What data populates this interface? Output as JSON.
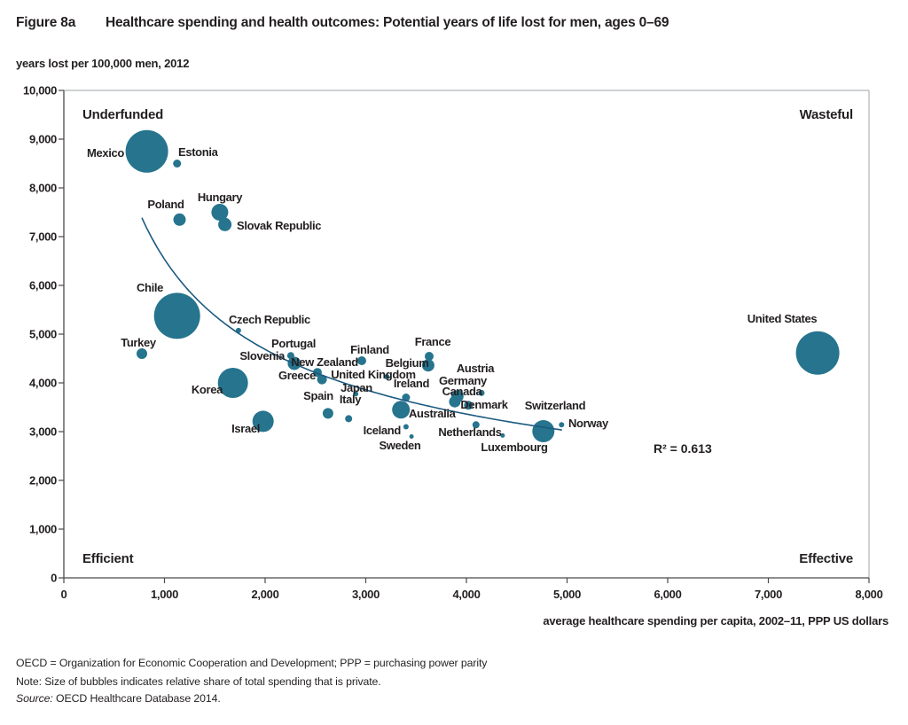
{
  "figure": {
    "tag": "Figure 8a",
    "title": "Healthcare spending and health outcomes: Potential years of life lost for men, ages 0–69"
  },
  "subtitle": "years lost per 100,000 men, 2012",
  "x_axis_title": "average healthcare spending per capita, 2002–11,  PPP US dollars",
  "quadrant_labels": {
    "top_left": "Underfunded",
    "top_right": "Wasteful",
    "bottom_left": "Efficient",
    "bottom_right": "Effective"
  },
  "r2_annotation": "R² = 0.613",
  "footnotes": {
    "line1": "OECD = Organization for Economic Cooperation and Development; PPP = purchasing power parity",
    "line2": "Note: Size of bubbles indicates relative share of total spending that is private.",
    "source_prefix": "Source:",
    "source_text": " OECD Healthcare Database 2014."
  },
  "colors": {
    "bubble": "#26748E",
    "trend_line": "#1B5A80",
    "quadrant_red": "#C4163C",
    "axis": "#4A4A4C",
    "border": "#B1B3B6",
    "text": "#231F20"
  },
  "chart_data": {
    "type": "scatter",
    "title": "Healthcare spending and health outcomes: Potential years of life lost for men, ages 0–69",
    "xlabel": "average healthcare spending per capita, 2002–11, PPP US dollars",
    "ylabel": "years lost per 100,000 men, 2012",
    "x_range": [
      0,
      8000
    ],
    "y_range": [
      0,
      10000
    ],
    "grid": false,
    "legend": false,
    "bubble_size_meaning": "relative share of total spending that is private",
    "x_ticks": [
      {
        "v": 0,
        "label": "0"
      },
      {
        "v": 1000,
        "label": "1,000"
      },
      {
        "v": 2000,
        "label": "2,000"
      },
      {
        "v": 3000,
        "label": "3,000"
      },
      {
        "v": 4000,
        "label": "4,000"
      },
      {
        "v": 5000,
        "label": "5,000"
      },
      {
        "v": 6000,
        "label": "6,000"
      },
      {
        "v": 7000,
        "label": "7,000"
      },
      {
        "v": 8000,
        "label": "8,000"
      }
    ],
    "y_ticks": [
      {
        "v": 0,
        "label": "0"
      },
      {
        "v": 1000,
        "label": "1,000"
      },
      {
        "v": 2000,
        "label": "2,000"
      },
      {
        "v": 3000,
        "label": "3,000"
      },
      {
        "v": 4000,
        "label": "4,000"
      },
      {
        "v": 5000,
        "label": "5,000"
      },
      {
        "v": 6000,
        "label": "6,000"
      },
      {
        "v": 7000,
        "label": "7,000"
      },
      {
        "v": 8000,
        "label": "8,000"
      },
      {
        "v": 9000,
        "label": "9,000"
      },
      {
        "v": 10000,
        "label": "10,000"
      }
    ],
    "trendline": {
      "form": "power",
      "a": 180042,
      "b": -0.48,
      "x_start": 775,
      "x_end": 4950,
      "r_squared": 0.613
    },
    "points": [
      {
        "country": "Mexico",
        "spending": 825,
        "years_lost": 8750,
        "r": 24,
        "label_x": 140,
        "label_y": 177,
        "anchor": "end"
      },
      {
        "country": "Estonia",
        "spending": 1125,
        "years_lost": 8500,
        "r": 4.5,
        "label_x": 201,
        "label_y": 176,
        "anchor": "start"
      },
      {
        "country": "Poland",
        "spending": 1150,
        "years_lost": 7350,
        "r": 7,
        "label_x": 187,
        "label_y": 235,
        "anchor": "middle"
      },
      {
        "country": "Hungary",
        "spending": 1550,
        "years_lost": 7500,
        "r": 9.5,
        "label_x": 248,
        "label_y": 227,
        "anchor": "middle"
      },
      {
        "country": "Slovak Republic",
        "spending": 1600,
        "years_lost": 7250,
        "r": 7.5,
        "label_x": 267,
        "label_y": 259,
        "anchor": "start"
      },
      {
        "country": "Chile",
        "spending": 1125,
        "years_lost": 5375,
        "r": 26,
        "label_x": 169,
        "label_y": 329,
        "anchor": "middle"
      },
      {
        "country": "Turkey",
        "spending": 775,
        "years_lost": 4600,
        "r": 6,
        "label_x": 156,
        "label_y": 391,
        "anchor": "middle"
      },
      {
        "country": "Czech Republic",
        "spending": 1735,
        "years_lost": 5075,
        "r": 3,
        "label_x": 258,
        "label_y": 365,
        "anchor": "start"
      },
      {
        "country": "Korea",
        "spending": 1680,
        "years_lost": 4000,
        "r": 17,
        "label_x": 251,
        "label_y": 444,
        "anchor": "end"
      },
      {
        "country": "Israel",
        "spending": 1980,
        "years_lost": 3210,
        "r": 12,
        "label_x": 293,
        "label_y": 488,
        "anchor": "end"
      },
      {
        "country": "Slovenia",
        "spending": 2255,
        "years_lost": 4560,
        "r": 4,
        "label_x": 321,
        "label_y": 406,
        "anchor": "end"
      },
      {
        "country": "Portugal",
        "spending": 2290,
        "years_lost": 4400,
        "r": 7.5,
        "label_x": 331,
        "label_y": 392,
        "anchor": "middle"
      },
      {
        "country": "New Zealand",
        "spending": 2520,
        "years_lost": 4215,
        "r": 5,
        "label_x": 366,
        "label_y": 413,
        "anchor": "middle"
      },
      {
        "country": "Greece",
        "spending": 2565,
        "years_lost": 4070,
        "r": 5.5,
        "label_x": 356,
        "label_y": 428,
        "anchor": "end"
      },
      {
        "country": "Spain",
        "spending": 2625,
        "years_lost": 3375,
        "r": 6,
        "label_x": 359,
        "label_y": 451,
        "anchor": "middle"
      },
      {
        "country": "Italy",
        "spending": 2830,
        "years_lost": 3265,
        "r": 4,
        "label_x": 395,
        "label_y": 455,
        "anchor": "middle"
      },
      {
        "country": "Japan",
        "spending": 2900,
        "years_lost": 3775,
        "r": 3,
        "label_x": 402,
        "label_y": 442,
        "anchor": "middle"
      },
      {
        "country": "Finland",
        "spending": 2960,
        "years_lost": 4455,
        "r": 5,
        "label_x": 417,
        "label_y": 399,
        "anchor": "middle"
      },
      {
        "country": "United Kingdom",
        "spending": 3210,
        "years_lost": 4125,
        "r": 3,
        "label_x": 421,
        "label_y": 427,
        "anchor": "middle"
      },
      {
        "country": "Ireland",
        "spending": 3400,
        "years_lost": 3700,
        "r": 4.5,
        "label_x": 464,
        "label_y": 437,
        "anchor": "middle"
      },
      {
        "country": "Belgium",
        "spending": 3620,
        "years_lost": 4360,
        "r": 7,
        "label_x": 459,
        "label_y": 414,
        "anchor": "middle"
      },
      {
        "country": "France",
        "spending": 3630,
        "years_lost": 4545,
        "r": 5,
        "label_x": 488,
        "label_y": 390,
        "anchor": "middle"
      },
      {
        "country": "Germany",
        "spending": 3910,
        "years_lost": 3725,
        "r": 7,
        "label_x": 522,
        "label_y": 434,
        "anchor": "middle"
      },
      {
        "country": "Canada",
        "spending": 3885,
        "years_lost": 3615,
        "r": 6.5,
        "label_x": 521,
        "label_y": 446,
        "anchor": "middle"
      },
      {
        "country": "Austria",
        "spending": 4150,
        "years_lost": 3795,
        "r": 3.5,
        "label_x": 536,
        "label_y": 420,
        "anchor": "middle"
      },
      {
        "country": "Denmark",
        "spending": 4020,
        "years_lost": 3540,
        "r": 5,
        "label_x": 546,
        "label_y": 461,
        "anchor": "middle"
      },
      {
        "country": "Australia",
        "spending": 3350,
        "years_lost": 3450,
        "r": 10,
        "label_x": 461,
        "label_y": 471,
        "anchor": "start"
      },
      {
        "country": "Iceland",
        "spending": 3400,
        "years_lost": 3100,
        "r": 3,
        "label_x": 452,
        "label_y": 490,
        "anchor": "end"
      },
      {
        "country": "Sweden",
        "spending": 3455,
        "years_lost": 2900,
        "r": 2.5,
        "label_x": 451,
        "label_y": 507,
        "anchor": "middle"
      },
      {
        "country": "Netherlands",
        "spending": 4095,
        "years_lost": 3140,
        "r": 4,
        "label_x": 530,
        "label_y": 492,
        "anchor": "middle"
      },
      {
        "country": "Luxembourg",
        "spending": 4360,
        "years_lost": 2920,
        "r": 2.5,
        "label_x": 580,
        "label_y": 509,
        "anchor": "middle"
      },
      {
        "country": "Switzerland",
        "spending": 4765,
        "years_lost": 3010,
        "r": 12.5,
        "label_x": 626,
        "label_y": 462,
        "anchor": "middle"
      },
      {
        "country": "Norway",
        "spending": 4945,
        "years_lost": 3140,
        "r": 3,
        "label_x": 641,
        "label_y": 482,
        "anchor": "start"
      },
      {
        "country": "United States",
        "spending": 7490,
        "years_lost": 4615,
        "r": 24.5,
        "label_x": 882,
        "label_y": 364,
        "anchor": "middle"
      }
    ]
  }
}
